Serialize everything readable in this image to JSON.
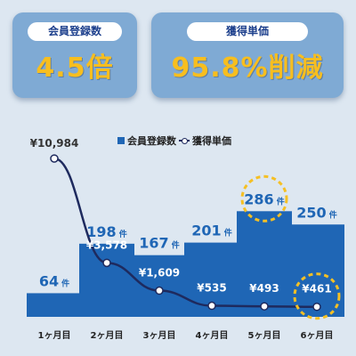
{
  "stats": [
    {
      "label": "会員登録数",
      "value": "4.5倍"
    },
    {
      "label": "獲得単価",
      "value": "95.8%削減"
    }
  ],
  "legend": {
    "bar": "会員登録数",
    "line": "獲得単価"
  },
  "colors": {
    "bar": "#1f66b5",
    "line": "#1e2a5e",
    "highlight": "#f5c024",
    "card": "#7faad4",
    "accent_text": "#f7be1f"
  },
  "chart_data": {
    "type": "bar",
    "categories": [
      "1ヶ月目",
      "2ヶ月目",
      "3ヶ月目",
      "4ヶ月目",
      "5ヶ月目",
      "6ヶ月目"
    ],
    "series": [
      {
        "name": "会員登録数",
        "type": "bar",
        "values": [
          64,
          198,
          167,
          201,
          286,
          250
        ],
        "labels": [
          "64 件",
          "198 件",
          "167 件",
          "201 件",
          "286 件",
          "250 件"
        ]
      },
      {
        "name": "獲得単価",
        "type": "line",
        "values": [
          10984,
          3578,
          1609,
          535,
          493,
          461
        ],
        "labels": [
          "¥10,984",
          "¥3,578",
          "¥1,609",
          "¥535",
          "¥493",
          "¥461"
        ]
      }
    ],
    "highlighted": [
      "286 件",
      "¥461"
    ],
    "ylim_bars": [
      0,
      300
    ],
    "ylim_line": [
      0,
      12000
    ],
    "legend_position": "top-center"
  }
}
